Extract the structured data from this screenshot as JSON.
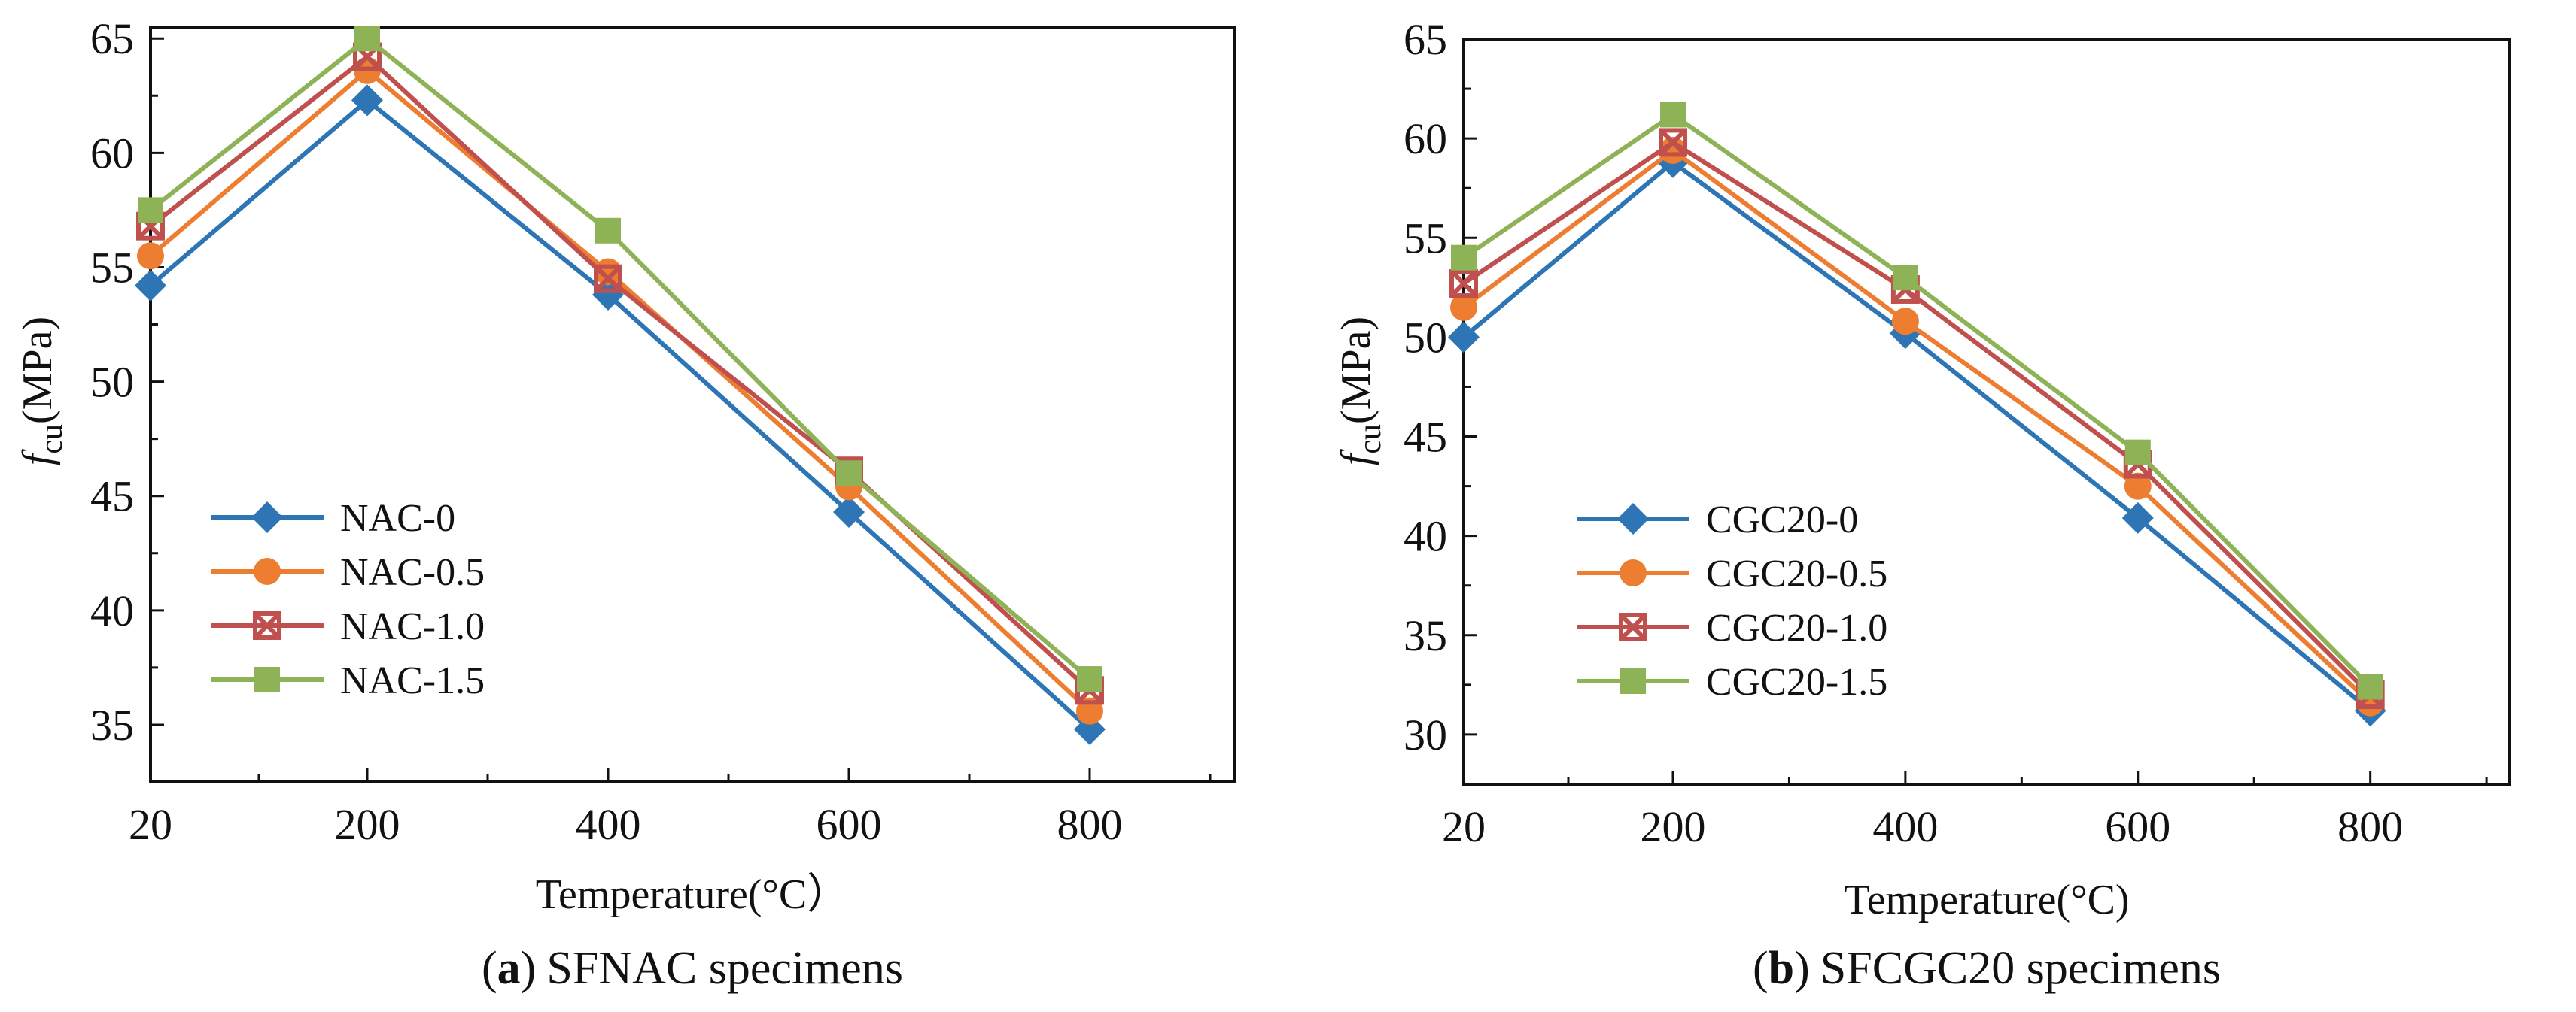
{
  "chart_data": [
    {
      "type": "line",
      "panel_id": "a",
      "caption_id": "(a)",
      "caption_text": "SFNAC specimens",
      "ylabel_symbol": "f",
      "ylabel_subscript": "cu",
      "ylabel_unit": "(MPa)",
      "xlabel": "Temperature(°C）",
      "x": [
        20,
        200,
        400,
        600,
        800
      ],
      "xticks": [
        "20",
        "200",
        "400",
        "600",
        "800"
      ],
      "xlim": [
        20,
        920
      ],
      "ylim": [
        32.5,
        65.5
      ],
      "yticks": [
        35,
        40,
        45,
        50,
        55,
        60,
        65
      ],
      "series": [
        {
          "name": "NAC-0",
          "color": "#2e75b6",
          "marker": "diamond",
          "values": [
            54.2,
            62.3,
            53.8,
            44.3,
            34.8
          ]
        },
        {
          "name": "NAC-0.5",
          "color": "#ed7d31",
          "marker": "circle",
          "values": [
            55.5,
            63.6,
            54.8,
            45.4,
            35.6
          ]
        },
        {
          "name": "NAC-1.0",
          "color": "#c0504d",
          "marker": "cross-square",
          "values": [
            56.8,
            64.2,
            54.5,
            46.1,
            36.5
          ]
        },
        {
          "name": "NAC-1.5",
          "color": "#8db356",
          "marker": "square",
          "values": [
            57.5,
            65.0,
            56.6,
            46.0,
            37.0
          ]
        }
      ]
    },
    {
      "type": "line",
      "panel_id": "b",
      "caption_id": "(b)",
      "caption_text": "SFCGC20 specimens",
      "ylabel_symbol": "f",
      "ylabel_subscript": "cu",
      "ylabel_unit": "(MPa)",
      "xlabel": "Temperature(°C)",
      "x": [
        20,
        200,
        400,
        600,
        800
      ],
      "xticks": [
        "20",
        "200",
        "400",
        "600",
        "800"
      ],
      "xlim": [
        20,
        920
      ],
      "ylim": [
        27.5,
        65.0
      ],
      "yticks": [
        30,
        35,
        40,
        45,
        50,
        55,
        60,
        65
      ],
      "series": [
        {
          "name": "CGC20-0",
          "color": "#2e75b6",
          "marker": "diamond",
          "values": [
            50.0,
            58.8,
            50.2,
            40.9,
            31.2
          ]
        },
        {
          "name": "CGC20-0.5",
          "color": "#ed7d31",
          "marker": "circle",
          "values": [
            51.5,
            59.4,
            50.8,
            42.5,
            31.6
          ]
        },
        {
          "name": "CGC20-1.0",
          "color": "#c0504d",
          "marker": "cross-square",
          "values": [
            52.7,
            59.8,
            52.4,
            43.6,
            32.0
          ]
        },
        {
          "name": "CGC20-1.5",
          "color": "#8db356",
          "marker": "square",
          "values": [
            54.0,
            61.2,
            53.0,
            44.2,
            32.4
          ]
        }
      ]
    }
  ]
}
